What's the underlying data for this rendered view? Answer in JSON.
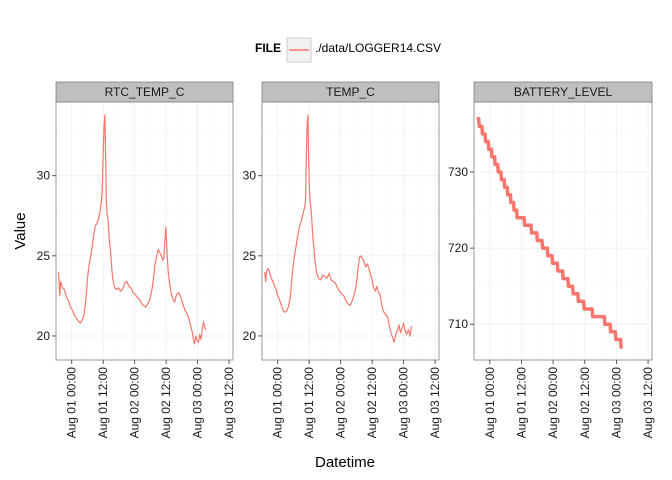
{
  "chart_data": {
    "type": "line",
    "xlabel": "Datetime",
    "ylabel": "Value",
    "x_ticks": [
      "Aug 01 00:00",
      "Aug 01 12:00",
      "Aug 02 00:00",
      "Aug 02 12:00",
      "Aug 03 00:00",
      "Aug 03 12:00"
    ],
    "x_tick_values": [
      0,
      12,
      24,
      36,
      48,
      60
    ],
    "x_unit": "hours from Aug 01 00:00",
    "legend": {
      "title": "FILE",
      "entries": [
        "./data/LOGGER14.CSV"
      ],
      "position": "top"
    },
    "series_color": "#F8766D",
    "grid": true,
    "panels": [
      {
        "strip": "RTC_TEMP_C",
        "xlim": [
          -6,
          61.5
        ],
        "ylim": [
          18.5,
          34.6
        ],
        "y_ticks": [
          20,
          25,
          30
        ],
        "points": [
          [
            -5,
            24.0
          ],
          [
            -4.6,
            22.5
          ],
          [
            -4.2,
            23.4
          ],
          [
            -3.5,
            23.0
          ],
          [
            -2.8,
            22.9
          ],
          [
            -2.0,
            22.4
          ],
          [
            -1.2,
            22.2
          ],
          [
            -0.5,
            21.8
          ],
          [
            0.3,
            21.6
          ],
          [
            1.0,
            21.3
          ],
          [
            1.8,
            21.1
          ],
          [
            2.6,
            20.9
          ],
          [
            3.3,
            20.8
          ],
          [
            4.1,
            21.0
          ],
          [
            4.8,
            21.4
          ],
          [
            5.4,
            22.3
          ],
          [
            6.0,
            23.6
          ],
          [
            6.6,
            24.4
          ],
          [
            7.2,
            24.9
          ],
          [
            7.8,
            25.6
          ],
          [
            8.4,
            26.3
          ],
          [
            9.0,
            26.9
          ],
          [
            9.6,
            27.0
          ],
          [
            10.2,
            27.3
          ],
          [
            10.8,
            27.8
          ],
          [
            11.2,
            28.3
          ],
          [
            11.6,
            29.0
          ],
          [
            12.0,
            31.5
          ],
          [
            12.3,
            33.0
          ],
          [
            12.6,
            33.8
          ],
          [
            12.9,
            31.4
          ],
          [
            13.2,
            28.5
          ],
          [
            13.5,
            27.6
          ],
          [
            13.9,
            27.2
          ],
          [
            14.3,
            26.0
          ],
          [
            14.8,
            25.3
          ],
          [
            15.3,
            24.1
          ],
          [
            15.8,
            23.4
          ],
          [
            16.4,
            23.0
          ],
          [
            17.0,
            22.9
          ],
          [
            17.8,
            23.0
          ],
          [
            18.6,
            22.8
          ],
          [
            19.4,
            22.9
          ],
          [
            20.2,
            23.3
          ],
          [
            21.0,
            23.4
          ],
          [
            21.8,
            23.1
          ],
          [
            22.6,
            23.0
          ],
          [
            23.4,
            22.7
          ],
          [
            24.2,
            22.6
          ],
          [
            25.0,
            22.4
          ],
          [
            25.8,
            22.3
          ],
          [
            26.6,
            22.0
          ],
          [
            27.4,
            21.9
          ],
          [
            28.2,
            21.8
          ],
          [
            29.0,
            22.0
          ],
          [
            29.8,
            22.3
          ],
          [
            30.5,
            22.8
          ],
          [
            31.2,
            23.6
          ],
          [
            31.8,
            24.5
          ],
          [
            32.4,
            25.0
          ],
          [
            33.0,
            25.4
          ],
          [
            33.6,
            25.2
          ],
          [
            34.2,
            25.0
          ],
          [
            34.8,
            24.7
          ],
          [
            35.2,
            24.9
          ],
          [
            35.6,
            26.2
          ],
          [
            35.9,
            26.8
          ],
          [
            36.3,
            25.4
          ],
          [
            36.8,
            24.0
          ],
          [
            37.4,
            23.2
          ],
          [
            38.0,
            22.6
          ],
          [
            38.6,
            22.3
          ],
          [
            39.2,
            22.1
          ],
          [
            40.0,
            22.6
          ],
          [
            40.8,
            22.7
          ],
          [
            41.6,
            22.4
          ],
          [
            42.4,
            22.0
          ],
          [
            43.2,
            21.6
          ],
          [
            44.0,
            21.4
          ],
          [
            44.8,
            21.0
          ],
          [
            45.4,
            20.6
          ],
          [
            46.0,
            20.2
          ],
          [
            46.4,
            19.8
          ],
          [
            46.8,
            19.5
          ],
          [
            47.3,
            20.0
          ],
          [
            47.8,
            19.7
          ],
          [
            48.3,
            19.6
          ],
          [
            48.8,
            20.1
          ],
          [
            49.3,
            19.8
          ],
          [
            49.8,
            20.4
          ],
          [
            50.3,
            20.9
          ],
          [
            50.8,
            20.5
          ],
          [
            51.2,
            20.4
          ]
        ]
      },
      {
        "strip": "TEMP_C",
        "xlim": [
          -6,
          61.5
        ],
        "ylim": [
          18.5,
          34.6
        ],
        "y_ticks": [
          20,
          25,
          30
        ],
        "points": [
          [
            -5,
            24.0
          ],
          [
            -4.6,
            23.4
          ],
          [
            -4.2,
            24.1
          ],
          [
            -3.6,
            24.2
          ],
          [
            -3.0,
            23.9
          ],
          [
            -2.4,
            23.6
          ],
          [
            -1.8,
            23.4
          ],
          [
            -1.2,
            23.1
          ],
          [
            -0.6,
            22.9
          ],
          [
            0.0,
            22.5
          ],
          [
            0.6,
            22.3
          ],
          [
            1.2,
            22.0
          ],
          [
            1.8,
            21.7
          ],
          [
            2.4,
            21.5
          ],
          [
            3.0,
            21.5
          ],
          [
            3.6,
            21.6
          ],
          [
            4.2,
            21.9
          ],
          [
            4.8,
            22.4
          ],
          [
            5.4,
            23.6
          ],
          [
            6.0,
            24.6
          ],
          [
            6.6,
            25.2
          ],
          [
            7.2,
            25.8
          ],
          [
            7.8,
            26.4
          ],
          [
            8.4,
            26.9
          ],
          [
            9.0,
            27.2
          ],
          [
            9.6,
            27.6
          ],
          [
            10.2,
            28.0
          ],
          [
            10.6,
            28.4
          ],
          [
            10.9,
            31.0
          ],
          [
            11.2,
            33.2
          ],
          [
            11.5,
            33.8
          ],
          [
            11.8,
            31.0
          ],
          [
            12.1,
            29.0
          ],
          [
            12.5,
            28.2
          ],
          [
            12.9,
            27.5
          ],
          [
            13.3,
            26.4
          ],
          [
            13.8,
            25.5
          ],
          [
            14.3,
            24.6
          ],
          [
            14.9,
            23.9
          ],
          [
            15.6,
            23.6
          ],
          [
            16.4,
            23.5
          ],
          [
            17.2,
            23.8
          ],
          [
            18.0,
            23.7
          ],
          [
            18.8,
            23.6
          ],
          [
            19.6,
            23.9
          ],
          [
            20.4,
            23.5
          ],
          [
            21.2,
            23.4
          ],
          [
            22.0,
            23.3
          ],
          [
            22.8,
            23.0
          ],
          [
            23.6,
            22.8
          ],
          [
            24.4,
            22.6
          ],
          [
            25.2,
            22.5
          ],
          [
            26.0,
            22.2
          ],
          [
            26.8,
            22.0
          ],
          [
            27.6,
            21.9
          ],
          [
            28.4,
            22.2
          ],
          [
            29.2,
            22.6
          ],
          [
            30.0,
            23.2
          ],
          [
            30.6,
            24.2
          ],
          [
            31.2,
            24.9
          ],
          [
            31.8,
            25.0
          ],
          [
            32.4,
            24.8
          ],
          [
            33.0,
            24.6
          ],
          [
            33.6,
            24.3
          ],
          [
            34.2,
            24.5
          ],
          [
            34.8,
            24.2
          ],
          [
            35.4,
            23.8
          ],
          [
            36.0,
            23.5
          ],
          [
            36.6,
            23.0
          ],
          [
            37.2,
            22.8
          ],
          [
            37.8,
            23.1
          ],
          [
            38.4,
            22.7
          ],
          [
            39.0,
            22.6
          ],
          [
            39.6,
            22.0
          ],
          [
            40.2,
            21.6
          ],
          [
            40.8,
            21.4
          ],
          [
            41.4,
            21.3
          ],
          [
            42.0,
            21.1
          ],
          [
            42.6,
            20.6
          ],
          [
            43.2,
            20.2
          ],
          [
            43.8,
            19.9
          ],
          [
            44.4,
            19.6
          ],
          [
            45.0,
            20.1
          ],
          [
            45.6,
            20.3
          ],
          [
            46.2,
            20.7
          ],
          [
            46.8,
            20.2
          ],
          [
            47.4,
            20.5
          ],
          [
            48.0,
            20.8
          ],
          [
            48.6,
            20.3
          ],
          [
            49.2,
            20.1
          ],
          [
            49.8,
            20.4
          ],
          [
            50.4,
            20.0
          ],
          [
            51.0,
            20.6
          ]
        ]
      },
      {
        "strip": "BATTERY_LEVEL",
        "xlim": [
          -6,
          61.5
        ],
        "ylim": [
          705.3,
          739.2
        ],
        "y_ticks": [
          710,
          720,
          730
        ],
        "points": [
          [
            -5.0,
            737
          ],
          [
            -4.2,
            737
          ],
          [
            -4.0,
            736
          ],
          [
            -3.0,
            736
          ],
          [
            -2.8,
            735
          ],
          [
            -1.8,
            735
          ],
          [
            -1.6,
            734
          ],
          [
            -0.6,
            734
          ],
          [
            -0.4,
            733
          ],
          [
            0.6,
            733
          ],
          [
            0.8,
            732
          ],
          [
            1.8,
            732
          ],
          [
            2.0,
            731
          ],
          [
            3.0,
            731
          ],
          [
            3.2,
            730
          ],
          [
            4.2,
            730
          ],
          [
            4.4,
            729
          ],
          [
            5.4,
            729
          ],
          [
            5.6,
            728
          ],
          [
            6.6,
            728
          ],
          [
            6.8,
            727
          ],
          [
            7.8,
            727
          ],
          [
            8.0,
            726
          ],
          [
            9.0,
            726
          ],
          [
            9.2,
            725
          ],
          [
            10.2,
            725
          ],
          [
            10.4,
            724
          ],
          [
            13.0,
            724
          ],
          [
            13.2,
            723
          ],
          [
            15.6,
            723
          ],
          [
            15.8,
            722
          ],
          [
            17.8,
            722
          ],
          [
            18.0,
            721
          ],
          [
            19.8,
            721
          ],
          [
            20.0,
            720
          ],
          [
            21.8,
            720
          ],
          [
            22.0,
            719
          ],
          [
            23.6,
            719
          ],
          [
            23.8,
            718
          ],
          [
            25.6,
            718
          ],
          [
            25.8,
            717
          ],
          [
            27.6,
            717
          ],
          [
            27.8,
            716
          ],
          [
            29.6,
            716
          ],
          [
            29.8,
            715
          ],
          [
            31.4,
            715
          ],
          [
            31.6,
            714
          ],
          [
            33.4,
            714
          ],
          [
            33.6,
            713
          ],
          [
            35.6,
            713
          ],
          [
            35.8,
            712
          ],
          [
            38.8,
            712
          ],
          [
            39.0,
            711
          ],
          [
            43.4,
            711
          ],
          [
            43.6,
            710
          ],
          [
            45.6,
            710
          ],
          [
            45.8,
            709
          ],
          [
            47.6,
            709
          ],
          [
            47.8,
            708
          ],
          [
            49.6,
            708
          ],
          [
            49.8,
            707
          ],
          [
            50.4,
            707
          ]
        ]
      }
    ]
  }
}
